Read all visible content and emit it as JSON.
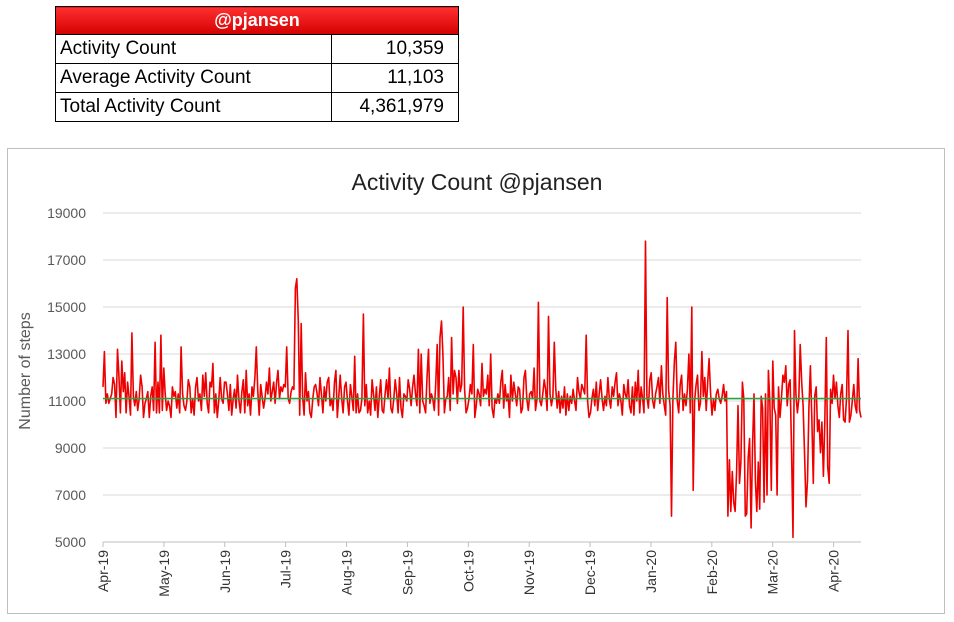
{
  "summary": {
    "header": "@pjansen",
    "rows": [
      {
        "label": "Activity Count",
        "value": "10,359"
      },
      {
        "label": "Average Activity Count",
        "value": "11,103"
      },
      {
        "label": "Total Activity Count",
        "value": "4,361,979"
      }
    ]
  },
  "chart_data": {
    "type": "line",
    "title": "Activity Count @pjansen",
    "xlabel": "",
    "ylabel": "Number of steps",
    "ylim": [
      5000,
      19000
    ],
    "yticks": [
      5000,
      7000,
      9000,
      11000,
      13000,
      15000,
      17000,
      19000
    ],
    "x_tick_labels": [
      "Apr-19",
      "May-19",
      "Jun-19",
      "Jul-19",
      "Aug-19",
      "Sep-19",
      "Oct-19",
      "Nov-19",
      "Dec-19",
      "Jan-20",
      "Feb-20",
      "Mar-20",
      "Apr-20"
    ],
    "grid": true,
    "legend": "none",
    "colors": {
      "series": "#ee0000",
      "average": "#2ea043",
      "grid": "#d9d9d9"
    },
    "average_line": 11103,
    "series": [
      {
        "values": [
          11600,
          13100,
          10900,
          11300,
          10900,
          11100,
          11300,
          12000,
          11700,
          10300,
          13200,
          12100,
          10500,
          12700,
          11400,
          12200,
          10500,
          11800,
          11200,
          10400,
          13900,
          11200,
          10800,
          11400,
          10600,
          11100,
          12100,
          11600,
          10300,
          10900,
          11100,
          11400,
          10300,
          11200,
          11600,
          10600,
          13500,
          10500,
          11800,
          10500,
          13800,
          10600,
          12400,
          11300,
          10600,
          11000,
          10800,
          10300,
          11600,
          11200,
          11400,
          10700,
          11300,
          10500,
          13300,
          11300,
          10800,
          10600,
          11000,
          11900,
          11600,
          10500,
          11100,
          10400,
          11600,
          12000,
          11000,
          11300,
          10600,
          12100,
          11200,
          12200,
          10900,
          10500,
          11800,
          11600,
          12600,
          10500,
          11300,
          10300,
          11000,
          12000,
          11100,
          10900,
          11800,
          11800,
          11300,
          10600,
          11700,
          10400,
          11100,
          11500,
          10700,
          12100,
          11000,
          10500,
          11400,
          11900,
          10500,
          12300,
          10800,
          11300,
          10400,
          11600,
          11200,
          12000,
          13300,
          11400,
          10400,
          11700,
          11200,
          10700,
          11100,
          11800,
          11300,
          12400,
          11000,
          11400,
          11800,
          10900,
          11800,
          12300,
          11100,
          11600,
          11400,
          11700,
          11600,
          13300,
          11100,
          10900,
          11400,
          11600,
          11500,
          15800,
          16200,
          14400,
          10400,
          14300,
          11200,
          10400,
          12200,
          11000,
          11400,
          10500,
          10300,
          11100,
          11600,
          11700,
          11300,
          10800,
          12000,
          11300,
          10500,
          11600,
          11000,
          11800,
          12000,
          10800,
          11100,
          10600,
          11800,
          12300,
          10300,
          11200,
          12100,
          11100,
          10500,
          11600,
          11800,
          11000,
          10400,
          11700,
          11200,
          10600,
          12900,
          10500,
          11300,
          10500,
          10600,
          11100,
          14700,
          10800,
          11700,
          10500,
          11000,
          10400,
          11900,
          11300,
          10600,
          11600,
          10300,
          11200,
          11900,
          10600,
          10500,
          11300,
          11900,
          11100,
          12400,
          10700,
          10500,
          11100,
          11900,
          11300,
          10500,
          12000,
          10700,
          10300,
          11300,
          11200,
          11000,
          11900,
          11500,
          10800,
          11600,
          12100,
          11300,
          10800,
          13200,
          10500,
          13000,
          11000,
          10800,
          10500,
          12000,
          13200,
          10900,
          11300,
          11100,
          10600,
          11700,
          13400,
          10400,
          13700,
          14400,
          13000,
          10500,
          11100,
          11200,
          12000,
          10600,
          13700,
          11300,
          12300,
          12000,
          10900,
          12300,
          11400,
          11700,
          15000,
          11500,
          10500,
          10700,
          11100,
          11700,
          11300,
          13400,
          10300,
          10800,
          11500,
          11300,
          10800,
          12600,
          11200,
          11500,
          11300,
          12100,
          10800,
          13000,
          10700,
          10300,
          11100,
          10900,
          11300,
          10900,
          11800,
          12300,
          10700,
          11700,
          11000,
          11300,
          10300,
          12100,
          11000,
          11800,
          11300,
          10800,
          11600,
          11500,
          10500,
          10700,
          12000,
          12300,
          11100,
          10600,
          11300,
          11400,
          11100,
          12400,
          10600,
          11100,
          15200,
          11000,
          10800,
          11300,
          11900,
          11500,
          10600,
          14600,
          11300,
          10800,
          11200,
          13500,
          11500,
          10700,
          11400,
          10500,
          11200,
          10700,
          11600,
          10400,
          11300,
          10600,
          11200,
          10900,
          11500,
          11000,
          10600,
          12000,
          11400,
          11100,
          11700,
          11500,
          11300,
          13800,
          11000,
          10300,
          10500,
          11100,
          11500,
          10800,
          11800,
          10600,
          11300,
          11900,
          11100,
          10600,
          11200,
          10800,
          12000,
          11100,
          10700,
          11600,
          11200,
          11800,
          12200,
          10800,
          11300,
          11000,
          10400,
          11700,
          11300,
          11100,
          11900,
          10800,
          10500,
          11600,
          10400,
          11800,
          11000,
          12300,
          10500,
          11600,
          11100,
          10500,
          17800,
          11200,
          10700,
          11900,
          12200,
          11000,
          10700,
          11300,
          11600,
          12000,
          10900,
          12500,
          11300,
          10800,
          10400,
          15400,
          11500,
          10800,
          6100,
          11100,
          12700,
          13500,
          11000,
          10500,
          11700,
          12100,
          10600,
          11300,
          10800,
          11500,
          13000,
          10500,
          15000,
          7200,
          11000,
          11700,
          12100,
          10600,
          10900,
          13100,
          11200,
          12000,
          10600,
          11800,
          12800,
          11300,
          10400,
          11100,
          10600,
          11300,
          11500,
          11100,
          10900,
          11200,
          11700,
          11000,
          11400,
          6100,
          8500,
          6300,
          8000,
          6700,
          6300,
          8000,
          10800,
          7500,
          8400,
          11800,
          11100,
          6100,
          6200,
          8600,
          9400,
          5600,
          9000,
          11300,
          7600,
          6300,
          8400,
          6400,
          11200,
          10700,
          6700,
          11300,
          7000,
          12300,
          10900,
          7200,
          12700,
          10700,
          10400,
          7000,
          11600,
          10300,
          11100,
          12100,
          11800,
          12500,
          10800,
          11700,
          11900,
          8800,
          5200,
          14000,
          11300,
          10500,
          11100,
          13400,
          11800,
          10800,
          8700,
          6500,
          7600,
          10700,
          12500,
          10300,
          7500,
          11200,
          11600,
          9700,
          10200,
          8800,
          10100,
          7800,
          10100,
          13700,
          8200,
          7500,
          11500,
          10900,
          12100,
          11100,
          11800,
          10800,
          10300,
          11300,
          11700,
          10200,
          10100,
          11100,
          14000,
          10100,
          10400,
          11000,
          11700,
          10800,
          10500,
          12800,
          10600,
          10300
        ]
      }
    ]
  }
}
